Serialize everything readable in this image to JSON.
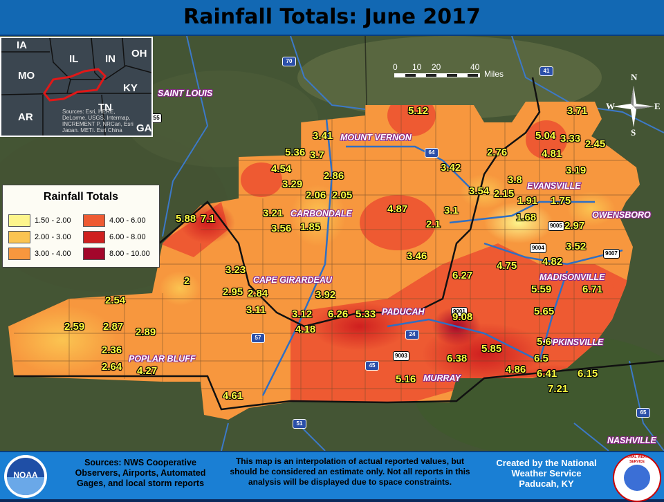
{
  "title": "Rainfall Totals: June 2017",
  "legend": {
    "title": "Rainfall Totals",
    "items": [
      {
        "range": "1.50 - 2.00",
        "color": "#fdf58c"
      },
      {
        "range": "2.00 - 3.00",
        "color": "#fbc451"
      },
      {
        "range": "3.00 - 4.00",
        "color": "#f7973e"
      },
      {
        "range": "4.00 - 6.00",
        "color": "#ee5a32"
      },
      {
        "range": "6.00 - 8.00",
        "color": "#cf1f1f"
      },
      {
        "range": "8.00 - 10.00",
        "color": "#a3062b"
      }
    ]
  },
  "scale_bar": {
    "ticks": [
      "0",
      "10",
      "20",
      "40"
    ],
    "unit": "Miles"
  },
  "compass": {
    "n": "N",
    "e": "E",
    "s": "S",
    "w": "W"
  },
  "inset": {
    "states": [
      "IA",
      "IL",
      "IN",
      "OH",
      "MO",
      "KY",
      "AR",
      "TN",
      "GA"
    ],
    "attribution": "Sources: Esri, HERE, DeLorme, USGS, Intermap, INCREMENT P, NRCan, Esri Japan, METI, Esri China (Hong Kong), Esri Korea, Esri (Thailand), MapmyIndia, NGCC, © OpenStreetMap contributors, and the GIS User Community"
  },
  "cities": [
    "SAINT LOUIS",
    "MOUNT VERNON",
    "CARBONDALE",
    "EVANSVILLE",
    "OWENSBORO",
    "CAPE GIRARDEAU",
    "MADISONVILLE",
    "PADUCAH",
    "HOPKINSVILLE",
    "POPLAR BLUFF",
    "MURRAY",
    "NASHVILLE"
  ],
  "highways": [
    "70",
    "64",
    "57",
    "24",
    "41",
    "65",
    "45",
    "51",
    "9003",
    "9004",
    "9005",
    "9001",
    "9007",
    "255"
  ],
  "rainfall_values": [
    "5.12",
    "3.71",
    "3.41",
    "5.04",
    "3.33",
    "2.45",
    "4.81",
    "5.36",
    "3.7",
    "2.76",
    "4.54",
    "3.42",
    "3.19",
    "2.86",
    "3.8",
    "3.29",
    "2.06",
    "2.05",
    "3.54",
    "2.15",
    "1.91",
    "1.75",
    "3.21",
    "4.87",
    "3.1",
    "5.88",
    "7.1",
    "3.56",
    "1.85",
    "1.68",
    "2.1",
    "2.97",
    "3.52",
    "3.46",
    "4.82",
    "3.23",
    "4.75",
    "6.27",
    "2",
    "5.59",
    "6.71",
    "2.95",
    "2.84",
    "3.92",
    "2.54",
    "3.11",
    "6.26",
    "5.33",
    "9.08",
    "5.65",
    "3.12",
    "2.59",
    "2.87",
    "2.89",
    "4.18",
    "5.6",
    "5.85",
    "2.36",
    "6.5",
    "6.38",
    "2.64",
    "4.27",
    "4.86",
    "6.41",
    "6.15",
    "5.16",
    "7.21",
    "4.61"
  ],
  "footer": {
    "sources": "Sources: NWS Cooperative Observers, Airports, Automated Gages, and local storm reports",
    "disclaimer": "This map is an interpolation of actual reported values, but should be considered an estimate only. Not all reports in this analysis will be displayed due to space constraints.",
    "credit": "Created by the National Weather Service Paducah, KY",
    "noaa_logo_text": "NOAA",
    "nws_logo_text": "NATIONAL WEATHER SERVICE"
  }
}
